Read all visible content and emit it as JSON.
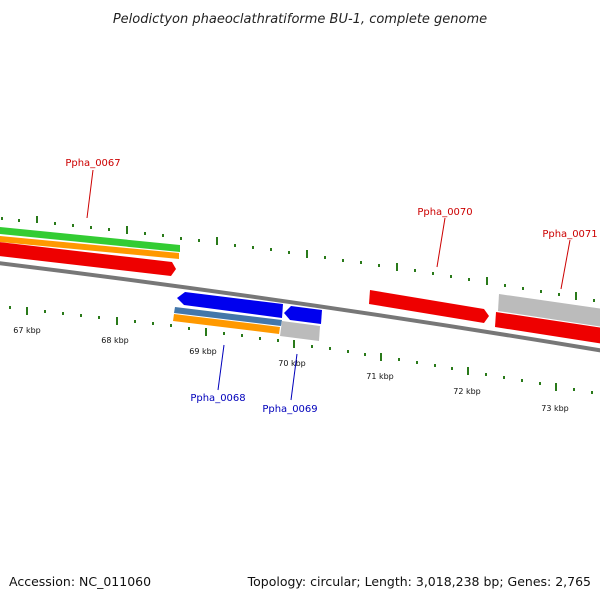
{
  "title": "Pelodictyon phaeoclathratiforme BU-1, complete genome",
  "footer": {
    "accession": "Accession: NC_011060",
    "summary": "Topology: circular; Length: 3,018,238 bp; Genes: 2,765"
  },
  "colors": {
    "backbone": "#777777",
    "tick": "#2a7a1a",
    "forward_label": "#cc0000",
    "reverse_label": "#0000bb",
    "red_gene": "#ee0000",
    "blue_gene": "#0000ee",
    "gray_gene": "#bbbbbb",
    "green_gene": "#33cc33",
    "orange_gene": "#ff9900",
    "steel_gene": "#4477aa"
  },
  "scale_labels": [
    "67 kbp",
    "68 kbp",
    "69 kbp",
    "70 kbp",
    "71 kbp",
    "72 kbp",
    "73 kbp"
  ],
  "gene_labels": [
    {
      "text": "Ppha_0067",
      "strand": "forward"
    },
    {
      "text": "Ppha_0068",
      "strand": "reverse"
    },
    {
      "text": "Ppha_0069",
      "strand": "reverse"
    },
    {
      "text": "Ppha_0070",
      "strand": "forward"
    },
    {
      "text": "Ppha_0071",
      "strand": "forward"
    }
  ]
}
